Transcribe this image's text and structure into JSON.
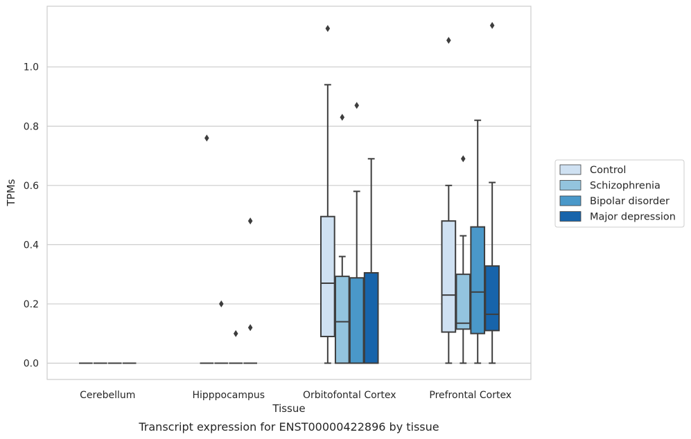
{
  "chart_data": {
    "type": "box",
    "title": "",
    "caption": "Transcript expression for ENST00000422896 by tissue",
    "xlabel": "Tissue",
    "ylabel": "TPMs",
    "ylim": [
      -0.055,
      1.205
    ],
    "yticks": [
      0.0,
      0.2,
      0.4,
      0.6,
      0.8,
      1.0
    ],
    "ytick_labels": [
      "0.0",
      "0.2",
      "0.4",
      "0.6",
      "0.8",
      "1.0"
    ],
    "grid": "horizontal",
    "legend_position": "outside right",
    "categories": [
      "Cerebellum",
      "Hipppocampus",
      "Orbitofontal Cortex",
      "Prefrontal Cortex"
    ],
    "series": [
      {
        "name": "Control",
        "color": "#cfe1f2",
        "boxes": [
          {
            "q1": 0,
            "median": 0,
            "q3": 0,
            "whislo": 0,
            "whishi": 0,
            "fliers": []
          },
          {
            "q1": 0,
            "median": 0,
            "q3": 0,
            "whislo": 0,
            "whishi": 0,
            "fliers": [
              0.76
            ]
          },
          {
            "q1": 0.09,
            "median": 0.27,
            "q3": 0.495,
            "whislo": 0,
            "whishi": 0.94,
            "fliers": [
              1.13
            ]
          },
          {
            "q1": 0.105,
            "median": 0.23,
            "q3": 0.48,
            "whislo": 0,
            "whishi": 0.6,
            "fliers": [
              1.09
            ]
          }
        ]
      },
      {
        "name": "Schizophrenia",
        "color": "#93c4de",
        "boxes": [
          {
            "q1": 0,
            "median": 0,
            "q3": 0,
            "whislo": 0,
            "whishi": 0,
            "fliers": []
          },
          {
            "q1": 0,
            "median": 0,
            "q3": 0,
            "whislo": 0,
            "whishi": 0,
            "fliers": [
              0.2
            ]
          },
          {
            "q1": 0,
            "median": 0.14,
            "q3": 0.293,
            "whislo": 0,
            "whishi": 0.36,
            "fliers": [
              0.83
            ]
          },
          {
            "q1": 0.115,
            "median": 0.135,
            "q3": 0.3,
            "whislo": 0,
            "whishi": 0.43,
            "fliers": [
              0.69
            ]
          }
        ]
      },
      {
        "name": "Bipolar disorder",
        "color": "#4a98c9",
        "boxes": [
          {
            "q1": 0,
            "median": 0,
            "q3": 0,
            "whislo": 0,
            "whishi": 0,
            "fliers": []
          },
          {
            "q1": 0,
            "median": 0,
            "q3": 0,
            "whislo": 0,
            "whishi": 0,
            "fliers": [
              0.1
            ]
          },
          {
            "q1": 0,
            "median": 0,
            "q3": 0.288,
            "whislo": 0,
            "whishi": 0.58,
            "fliers": [
              0.87
            ]
          },
          {
            "q1": 0.1,
            "median": 0.24,
            "q3": 0.46,
            "whislo": 0,
            "whishi": 0.82,
            "fliers": []
          }
        ]
      },
      {
        "name": "Major depression",
        "color": "#1764ab",
        "boxes": [
          {
            "q1": 0,
            "median": 0,
            "q3": 0,
            "whislo": 0,
            "whishi": 0,
            "fliers": []
          },
          {
            "q1": 0,
            "median": 0,
            "q3": 0,
            "whislo": 0,
            "whishi": 0,
            "fliers": [
              0.12,
              0.48
            ]
          },
          {
            "q1": 0,
            "median": 0,
            "q3": 0.305,
            "whislo": 0,
            "whishi": 0.69,
            "fliers": []
          },
          {
            "q1": 0.11,
            "median": 0.165,
            "q3": 0.328,
            "whislo": 0,
            "whishi": 0.61,
            "fliers": [
              1.14
            ]
          }
        ]
      }
    ]
  }
}
